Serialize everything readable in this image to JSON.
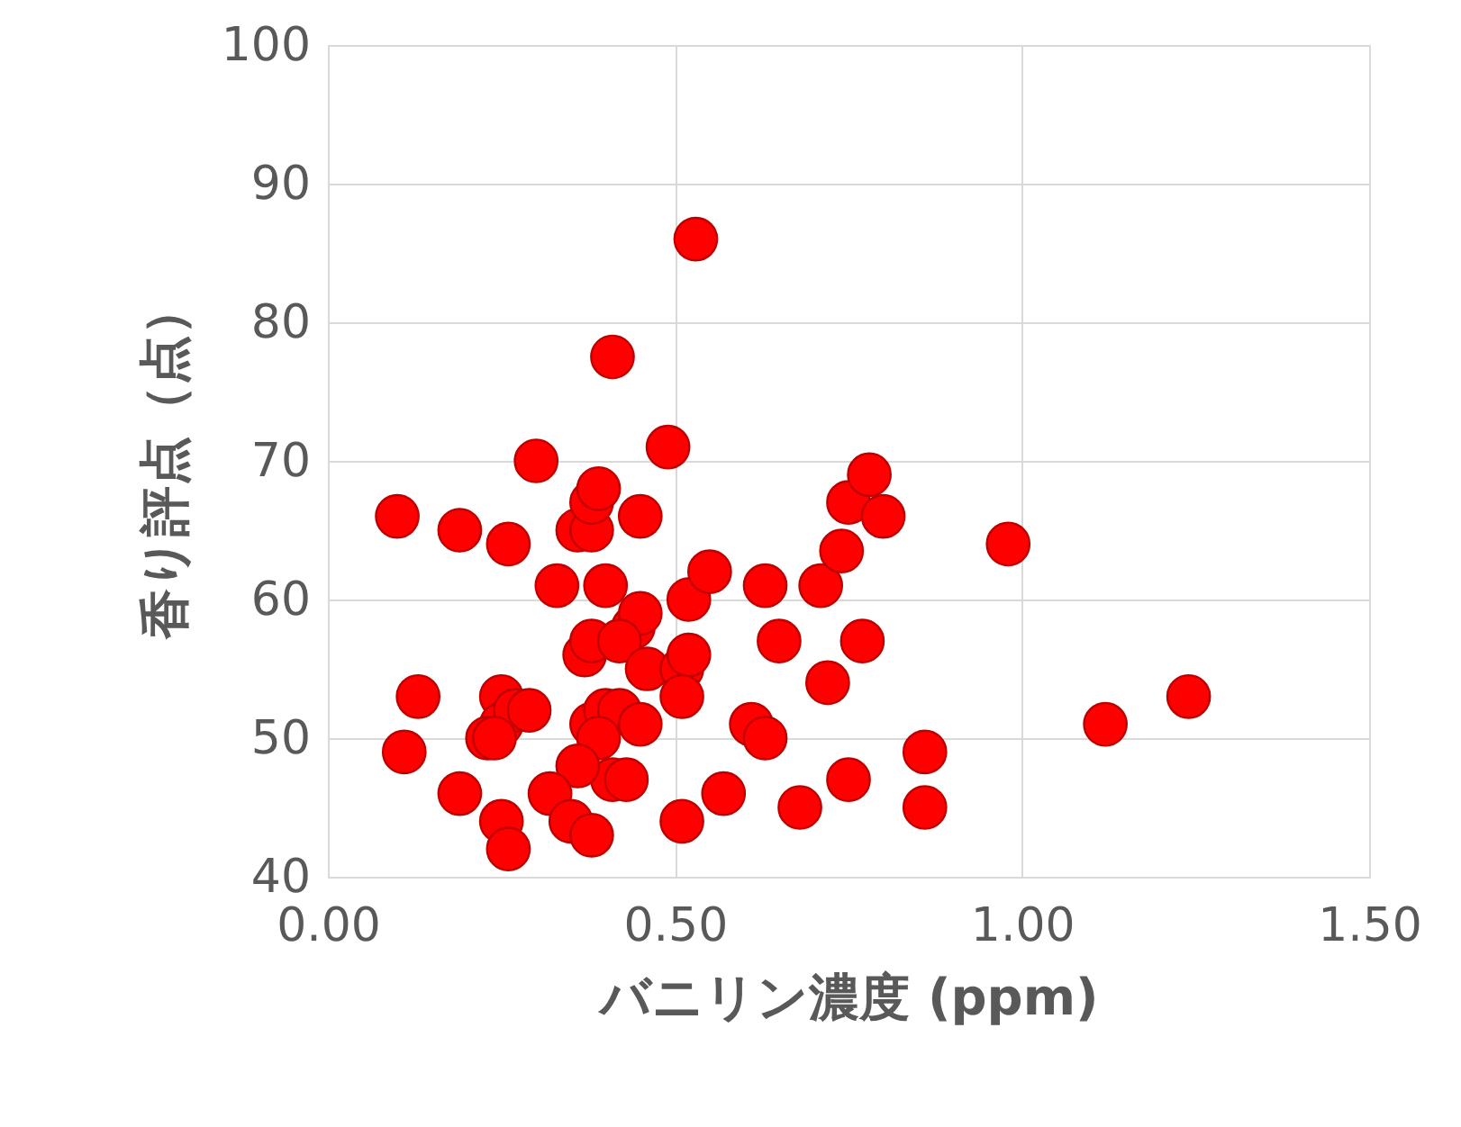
{
  "chart_data": {
    "type": "scatter",
    "xlabel": "バニリン濃度 (ppm)",
    "ylabel": "香り評点（点）",
    "xlim": [
      0,
      1.5
    ],
    "xticks": [
      {
        "value": 0,
        "label": "0.00"
      },
      {
        "value": 0.5,
        "label": "0.50"
      },
      {
        "value": 1,
        "label": "1.00"
      },
      {
        "value": 1.5,
        "label": "1.50"
      }
    ],
    "ylim": [
      40,
      100
    ],
    "yticks": [
      40,
      50,
      60,
      70,
      80,
      90,
      100
    ],
    "grid": true,
    "marker": "circle",
    "series": [
      {
        "color": "#ff0000",
        "x": [
          0.1,
          0.19,
          0.26,
          0.3,
          0.33,
          0.36,
          0.38,
          0.38,
          0.39,
          0.4,
          0.41,
          0.49,
          0.45,
          0.53,
          0.52,
          0.55,
          0.44,
          0.45,
          0.37,
          0.38,
          0.42,
          0.46,
          0.51,
          0.52,
          0.51,
          0.13,
          0.11,
          0.25,
          0.25,
          0.27,
          0.29,
          0.23,
          0.24,
          0.38,
          0.4,
          0.42,
          0.45,
          0.39,
          0.41,
          0.43,
          0.36,
          0.19,
          0.32,
          0.35,
          0.38,
          0.25,
          0.26,
          0.51,
          0.57,
          0.61,
          0.63,
          0.63,
          0.65,
          0.68,
          0.71,
          0.72,
          0.74,
          0.75,
          0.78,
          0.8,
          0.77,
          0.75,
          0.86,
          0.86,
          0.98,
          1.12,
          1.24
        ],
        "values": [
          66,
          65,
          64,
          70,
          61,
          65,
          65,
          67,
          68,
          61,
          77.5,
          71,
          66,
          86,
          60,
          62,
          58,
          59,
          56,
          57,
          57,
          55,
          55,
          56,
          53,
          53,
          49,
          53,
          51,
          52,
          52,
          50,
          50,
          51,
          52,
          52,
          51,
          50,
          47,
          47,
          48,
          46,
          46,
          44,
          43,
          44,
          42,
          44,
          46,
          51,
          50,
          61,
          57,
          45,
          61,
          54,
          63.5,
          67,
          69,
          66,
          57,
          47,
          49,
          45,
          64,
          51,
          53
        ]
      }
    ]
  }
}
